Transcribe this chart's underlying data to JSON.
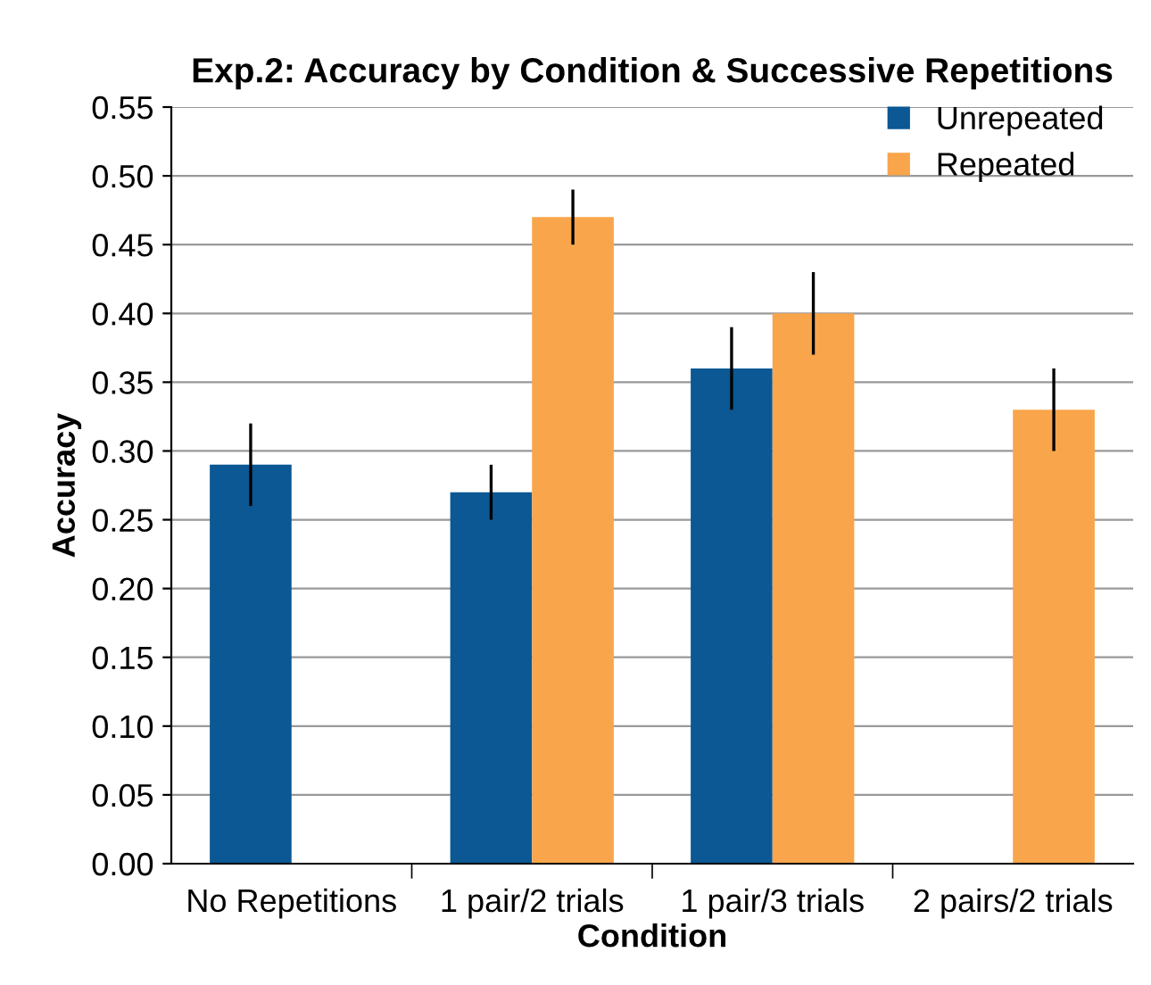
{
  "chart_data": {
    "type": "bar",
    "title": "Exp.2: Accuracy by Condition & Successive Repetitions",
    "xlabel": "Condition",
    "ylabel": "Accuracy",
    "categories": [
      "No Repetitions",
      "1 pair/2 trials",
      "1 pair/3 trials",
      "2 pairs/2 trials"
    ],
    "series": [
      {
        "name": "Unrepeated",
        "color": "#0b5894",
        "values": [
          0.29,
          0.27,
          0.36,
          null
        ],
        "errors": [
          0.03,
          0.02,
          0.03,
          null
        ]
      },
      {
        "name": "Repeated",
        "color": "#f9a54b",
        "values": [
          null,
          0.47,
          0.4,
          0.33
        ],
        "errors": [
          null,
          0.02,
          0.03,
          0.03
        ]
      }
    ],
    "ylim": [
      0,
      0.55
    ],
    "yticks": [
      {
        "value": 0,
        "label": "0.00"
      },
      {
        "value": 0.05,
        "label": "0.05"
      },
      {
        "value": 0.1,
        "label": "0.10"
      },
      {
        "value": 0.15,
        "label": "0.15"
      },
      {
        "value": 0.2,
        "label": "0.20"
      },
      {
        "value": 0.25,
        "label": "0.25"
      },
      {
        "value": 0.3,
        "label": "0.30"
      },
      {
        "value": 0.35,
        "label": "0.35"
      },
      {
        "value": 0.4,
        "label": "0.40"
      },
      {
        "value": 0.45,
        "label": "0.45"
      },
      {
        "value": 0.5,
        "label": "0.50"
      },
      {
        "value": 0.55,
        "label": "0.55"
      }
    ],
    "grid": "y",
    "legend": "top right"
  }
}
